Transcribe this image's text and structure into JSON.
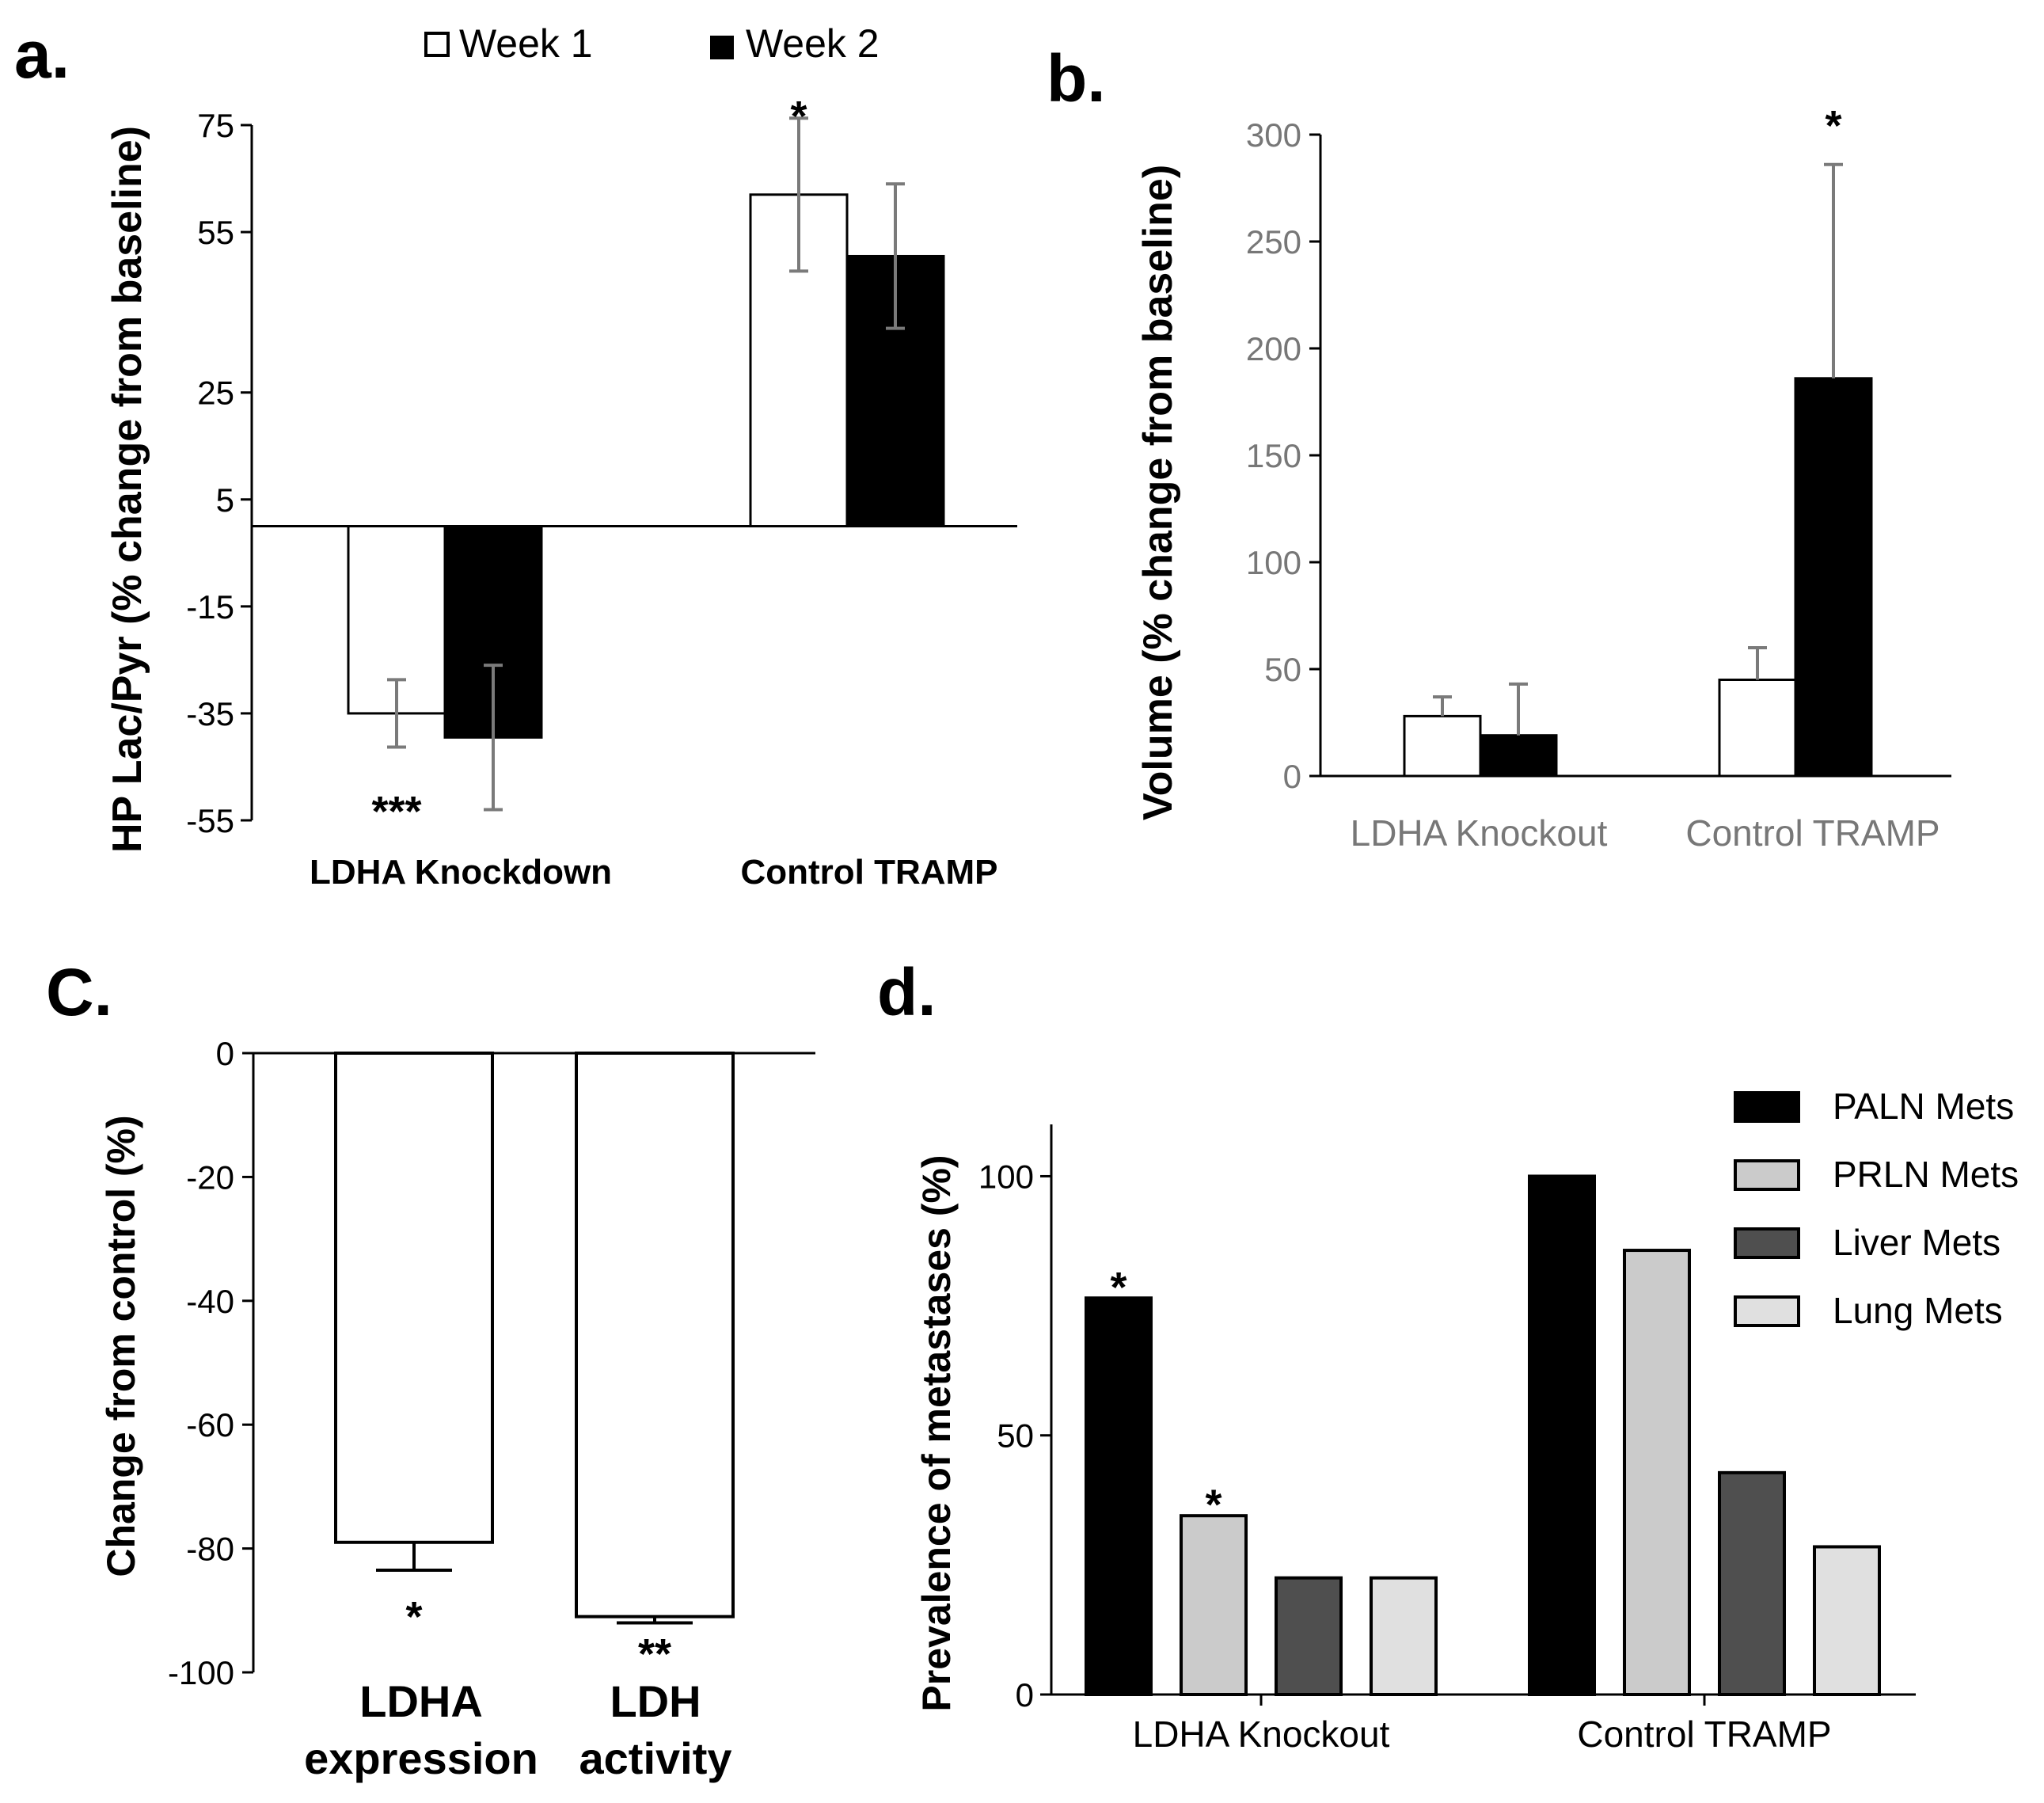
{
  "chart_data": [
    {
      "panel": "a.",
      "type": "bar",
      "ylabel": "HP Lac/Pyr (% change from baseline)",
      "ylim": [
        -55,
        75
      ],
      "yticks": [
        75,
        55,
        25,
        5,
        -15,
        -35,
        -55
      ],
      "categories": [
        "LDHA Knockdown",
        "Control TRAMP"
      ],
      "series": [
        {
          "name": "Week 1",
          "fill": "#ffffff",
          "values": [
            -35,
            62
          ],
          "errors": [
            6.3,
            14.3
          ]
        },
        {
          "name": "Week 2",
          "fill": "#000000",
          "values": [
            -39.5,
            50.5
          ],
          "errors": [
            13.5,
            13.5
          ]
        }
      ],
      "annotations": [
        {
          "text": "***",
          "category": 0,
          "series": 0,
          "value": -51
        },
        {
          "text": "*",
          "category": 1,
          "series": 0,
          "value": 79
        }
      ]
    },
    {
      "panel": "b.",
      "type": "bar",
      "ylabel": "Volume (% change from baseline)",
      "ylim": [
        0,
        300
      ],
      "yticks": [
        0,
        50,
        100,
        150,
        200,
        250,
        300
      ],
      "categories": [
        "LDHA Knockout",
        "Control TRAMP"
      ],
      "series": [
        {
          "name": "Week 1",
          "fill": "#ffffff",
          "values": [
            28,
            45
          ],
          "errors": [
            9,
            15
          ]
        },
        {
          "name": "Week 2",
          "fill": "#000000",
          "values": [
            19,
            186
          ],
          "errors": [
            24,
            100
          ]
        }
      ],
      "annotations": [
        {
          "text": "*",
          "category": 1,
          "series": 1,
          "value": 310
        }
      ]
    },
    {
      "panel": "C.",
      "type": "bar",
      "ylabel": "Change from control (%)",
      "ylim": [
        -100,
        0
      ],
      "yticks": [
        0,
        -20,
        -40,
        -60,
        -80,
        -100
      ],
      "categories": [
        "LDHA expression",
        "LDH activity"
      ],
      "category_lines": [
        [
          "LDHA",
          "expression"
        ],
        [
          "LDH",
          "activity"
        ]
      ],
      "values": [
        -79,
        -91
      ],
      "errors": [
        4.5,
        1
      ],
      "annotations": [
        {
          "text": "*",
          "category": 0,
          "value": -89
        },
        {
          "text": "**",
          "category": 1,
          "value": -95
        }
      ]
    },
    {
      "panel": "d.",
      "type": "bar",
      "ylabel": "Prevalence of metastases (%)",
      "ylim": [
        0,
        110
      ],
      "yticks": [
        0,
        50,
        100
      ],
      "categories": [
        "LDHA Knockout",
        "Control TRAMP"
      ],
      "series": [
        {
          "name": "PALN Mets",
          "fill": "#000000",
          "values": [
            76.5,
            100
          ]
        },
        {
          "name": "PRLN Mets",
          "fill": "#cbcbcb",
          "values": [
            34.5,
            85.7
          ]
        },
        {
          "name": "Liver Mets",
          "fill": "#4f4f4f",
          "values": [
            22.5,
            42.8
          ]
        },
        {
          "name": "Lung Mets",
          "fill": "#e0e0e0",
          "values": [
            22.5,
            28.5
          ]
        }
      ],
      "annotations": [
        {
          "text": "*",
          "category": 0,
          "series": 0,
          "value": 81
        },
        {
          "text": "*",
          "category": 0,
          "series": 1,
          "value": 39
        }
      ]
    }
  ]
}
